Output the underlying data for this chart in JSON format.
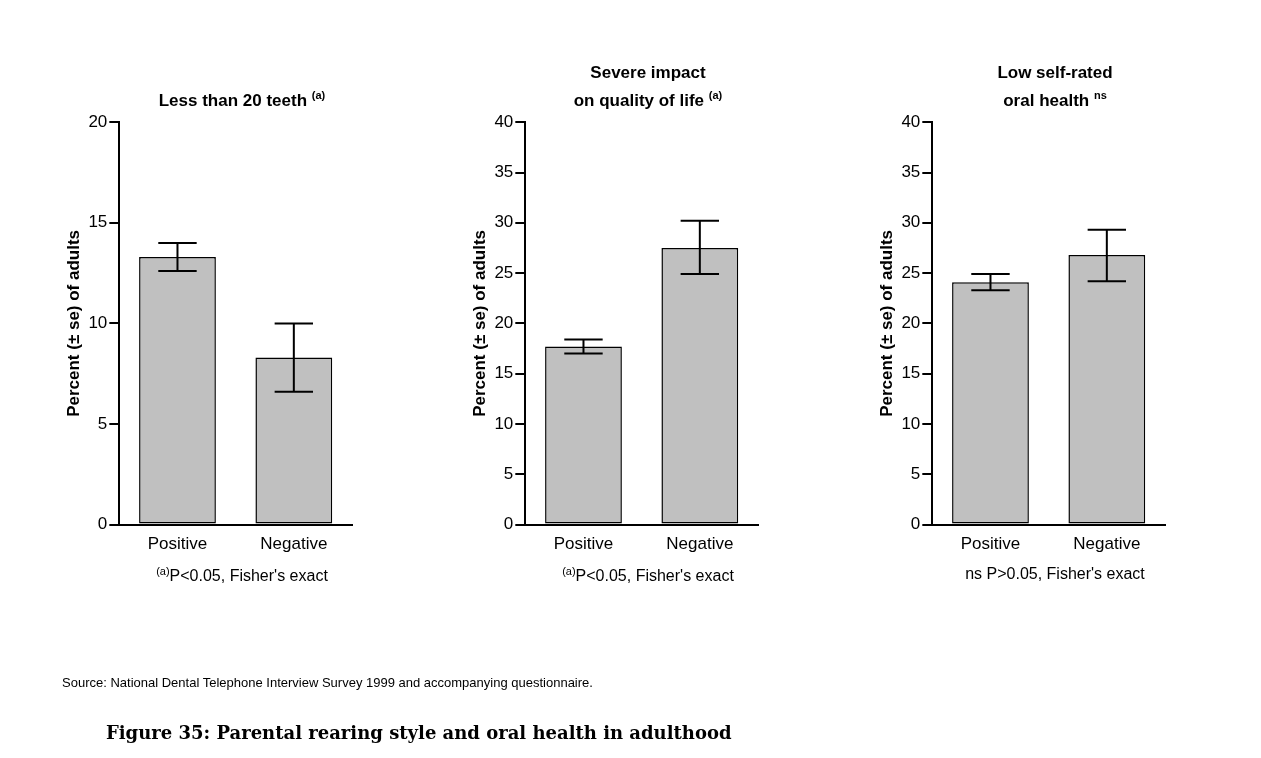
{
  "chart_data": [
    {
      "type": "bar",
      "title": "Less than 20 teeth $^{(a)}$",
      "ylabel": "Percent (± se) of adults",
      "categories": [
        "Positive",
        "Negative"
      ],
      "color": "#c0c0c0",
      "values": [
        13.3,
        8.3
      ],
      "errors": [
        [
          12.6,
          14.0
        ],
        [
          6.6,
          10.0
        ]
      ],
      "ylim": [
        0,
        20
      ],
      "yticks": [
        0,
        5,
        10,
        15,
        20
      ],
      "grid": false,
      "legend": false,
      "annotations": [
        "$^{(a)}$P<0.05, Fisher's exact",
        "Source: National Dental Telephone Interview Survey 1999 and accompanying questionnaire.",
        "Figure 35: Parental rearing style and oral health in adulthood"
      ]
    },
    {
      "type": "bar",
      "title": "Severe impact\non quality of life $^{(a)}$",
      "ylabel": "Percent (± se) of adults",
      "categories": [
        "Positive",
        "Negative"
      ],
      "color": "#c0c0c0",
      "values": [
        17.7,
        27.5
      ],
      "errors": [
        [
          17.0,
          18.4
        ],
        [
          24.9,
          30.2
        ]
      ],
      "ylim": [
        0,
        40
      ],
      "yticks": [
        0,
        5,
        10,
        15,
        20,
        25,
        30,
        35,
        40
      ],
      "grid": false,
      "legend": false,
      "annotations": [
        "$^{(a)}$P<0.05, Fisher's exact"
      ]
    },
    {
      "type": "bar",
      "title": "Low self-rated\noral health $^{ns}$",
      "ylabel": "Percent (± se) of adults",
      "categories": [
        "Positive",
        "Negative"
      ],
      "color": "#c0c0c0",
      "values": [
        24.1,
        26.8
      ],
      "errors": [
        [
          23.3,
          24.9
        ],
        [
          24.2,
          29.3
        ]
      ],
      "ylim": [
        0,
        40
      ],
      "yticks": [
        0,
        5,
        10,
        15,
        20,
        25,
        30,
        35,
        40
      ],
      "grid": false,
      "legend": false,
      "annotations": [
        "ns P>0.05, Fisher's exact"
      ]
    }
  ]
}
